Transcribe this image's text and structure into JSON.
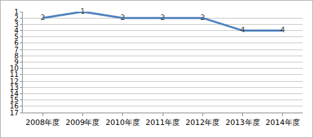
{
  "chart_data": {
    "type": "line",
    "categories": [
      "2008年度",
      "2009年度",
      "2010年度",
      "2011年度",
      "2012年度",
      "2013年度",
      "2014年度"
    ],
    "values": [
      2,
      1,
      2,
      2,
      2,
      4,
      4
    ],
    "color": "#4f81bd",
    "ylim": [
      17,
      1
    ],
    "yticks": [
      1,
      2,
      3,
      4,
      5,
      6,
      7,
      8,
      9,
      10,
      11,
      12,
      13,
      14,
      15,
      16,
      17
    ],
    "grid": true,
    "data_labels": true
  }
}
